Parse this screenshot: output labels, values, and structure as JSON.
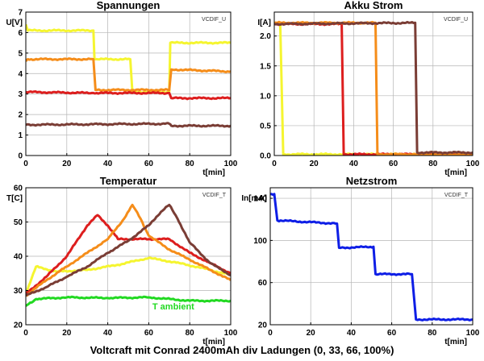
{
  "figure": {
    "caption": "Voltcraft mit Conrad 2400mAh div Ladungen (0, 33, 66, 100%)"
  },
  "chart_data": [
    {
      "type": "line",
      "title": "Spannungen",
      "xlabel": "t[min]",
      "ylabel": "U[V]",
      "tag": "VCDIF_U",
      "xlim": [
        0,
        100
      ],
      "ylim": [
        0,
        7
      ],
      "xticks": [
        0,
        20,
        40,
        60,
        80,
        100
      ],
      "yticks": [
        0,
        1,
        2,
        3,
        4,
        5,
        6,
        7
      ],
      "grid": true,
      "series": [
        {
          "color": "#f5f530",
          "x": [
            0,
            1,
            33,
            33.5,
            51,
            52,
            70,
            70.5,
            100
          ],
          "y": [
            6.4,
            6.1,
            6.1,
            4.7,
            4.7,
            3.1,
            3.1,
            5.5,
            5.5
          ]
        },
        {
          "color": "#f58d1a",
          "x": [
            0,
            1,
            33,
            34,
            70,
            71,
            100
          ],
          "y": [
            4.6,
            4.7,
            4.7,
            3.2,
            3.2,
            4.2,
            4.1
          ]
        },
        {
          "color": "#dd1e1e",
          "x": [
            0,
            33,
            70,
            71,
            100
          ],
          "y": [
            3.1,
            3.05,
            3.05,
            2.8,
            2.8
          ]
        },
        {
          "color": "#7a3d35",
          "x": [
            0,
            68,
            70,
            71,
            100
          ],
          "y": [
            1.5,
            1.55,
            1.55,
            1.45,
            1.45
          ]
        }
      ]
    },
    {
      "type": "line",
      "title": "Akku Strom",
      "xlabel": "t[min]",
      "ylabel": "I[A]",
      "tag": "VCDIF_U",
      "xlim": [
        0,
        100
      ],
      "ylim": [
        0,
        2.4
      ],
      "xticks": [
        0,
        20,
        40,
        60,
        80,
        100
      ],
      "yticks": [
        0.0,
        0.5,
        1.0,
        1.5,
        2.0
      ],
      "grid": true,
      "series": [
        {
          "color": "#f5f530",
          "x": [
            0,
            3,
            4.5,
            100
          ],
          "y": [
            2.2,
            2.2,
            0.02,
            0.02
          ]
        },
        {
          "color": "#dd1e1e",
          "x": [
            0,
            34,
            35,
            100
          ],
          "y": [
            2.2,
            2.2,
            0.02,
            0.02
          ]
        },
        {
          "color": "#f58d1a",
          "x": [
            0,
            51,
            52,
            100
          ],
          "y": [
            2.22,
            2.22,
            0.02,
            0.02
          ]
        },
        {
          "color": "#7a3d35",
          "x": [
            0,
            71,
            72,
            100
          ],
          "y": [
            2.2,
            2.22,
            0.05,
            0.05
          ]
        }
      ]
    },
    {
      "type": "line",
      "title": "Temperatur",
      "xlabel": "t[min]",
      "ylabel": "T[C]",
      "tag": "VCDIF_T",
      "xlim": [
        0,
        100
      ],
      "ylim": [
        20,
        60
      ],
      "xticks": [
        0,
        20,
        40,
        60,
        80,
        100
      ],
      "yticks": [
        20,
        30,
        40,
        50,
        60
      ],
      "grid": true,
      "annotations": [
        {
          "text": "T ambient",
          "x": 72,
          "y": 24.5,
          "color": "#22d922"
        }
      ],
      "series": [
        {
          "color": "#22d922",
          "x": [
            0,
            5,
            20,
            40,
            60,
            80,
            100
          ],
          "y": [
            25.5,
            27.5,
            28,
            27.8,
            28,
            27,
            27
          ]
        },
        {
          "color": "#f5f530",
          "x": [
            0,
            5,
            15,
            30,
            45,
            60,
            75,
            90,
            100
          ],
          "y": [
            29,
            37,
            35.5,
            36,
            37.5,
            39.5,
            38,
            36,
            34.5
          ]
        },
        {
          "color": "#dd1e1e",
          "x": [
            0,
            10,
            20,
            30,
            35,
            40,
            45,
            70,
            80,
            90,
            100
          ],
          "y": [
            29,
            34,
            40,
            49,
            52,
            49,
            45,
            45,
            41,
            38,
            35
          ]
        },
        {
          "color": "#f58d1a",
          "x": [
            0,
            10,
            20,
            30,
            40,
            48,
            52,
            56,
            60,
            70,
            80,
            90,
            100
          ],
          "y": [
            28.5,
            33,
            37,
            41,
            45,
            51,
            55,
            51,
            46,
            42,
            39,
            36,
            33
          ]
        },
        {
          "color": "#7a3d35",
          "x": [
            0,
            10,
            20,
            30,
            40,
            50,
            60,
            66,
            70,
            74,
            80,
            90,
            100
          ],
          "y": [
            28.5,
            31,
            34,
            37,
            41,
            44.5,
            49,
            53,
            55,
            51,
            44,
            38,
            34.5
          ]
        }
      ]
    },
    {
      "type": "line",
      "title": "Netzstrom",
      "xlabel": "t[min]",
      "ylabel": "In[mA]",
      "tag": "VCDIF_T",
      "xlim": [
        0,
        100
      ],
      "ylim": [
        20,
        150
      ],
      "xticks": [
        0,
        20,
        40,
        60,
        80,
        100
      ],
      "yticks": [
        20,
        60,
        100,
        140
      ],
      "grid": true,
      "series": [
        {
          "color": "#0e1ee6",
          "x": [
            0,
            2,
            3.5,
            33,
            34,
            51,
            52,
            70,
            72,
            100
          ],
          "y": [
            144,
            144,
            119,
            116,
            93,
            94,
            68,
            68,
            25,
            25
          ]
        }
      ]
    }
  ]
}
